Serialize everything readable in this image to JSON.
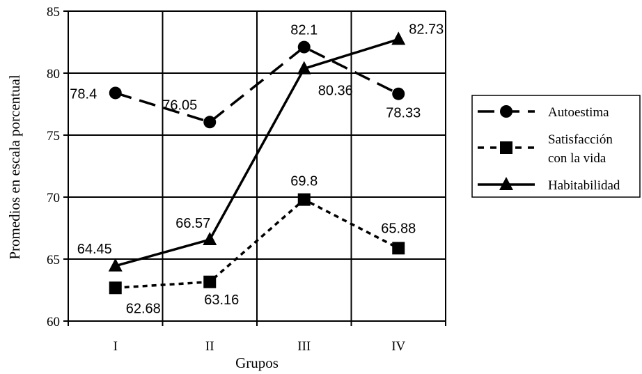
{
  "chart_data": {
    "type": "line",
    "categories": [
      "I",
      "II",
      "III",
      "IV"
    ],
    "xlabel": "Grupos",
    "ylabel": "Promedios en escala porcentual",
    "ylim": [
      60,
      85
    ],
    "yticks": [
      60,
      65,
      70,
      75,
      80,
      85
    ],
    "grid": true,
    "legend_position": "right",
    "series": [
      {
        "name": "Autoestima",
        "marker": "circle",
        "line_style": "dashed",
        "values": [
          78.4,
          76.05,
          82.1,
          78.33
        ],
        "labels": [
          "78.4",
          "76.05",
          "82.1",
          "78.33"
        ]
      },
      {
        "name_lines": [
          "Satisfacción",
          "con la vida"
        ],
        "marker": "square",
        "line_style": "dotted",
        "values": [
          62.68,
          63.16,
          69.8,
          65.88
        ],
        "labels": [
          "62.68",
          "63.16",
          "69.8",
          "65.88"
        ]
      },
      {
        "name": "Habitabilidad",
        "marker": "triangle",
        "line_style": "solid",
        "values": [
          64.45,
          66.57,
          80.36,
          82.73
        ],
        "labels": [
          "64.45",
          "66.57",
          "80.36",
          "82.73"
        ]
      }
    ]
  }
}
